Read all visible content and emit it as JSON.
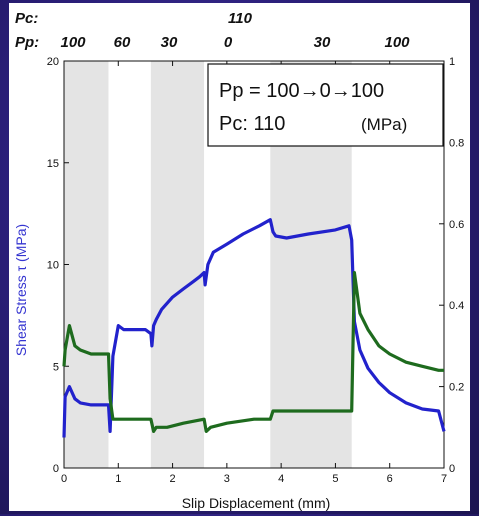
{
  "header": {
    "pc_label": "Pc:",
    "pp_label": "Pp:",
    "pc_value": "110",
    "pp_values": [
      "100",
      "60",
      "30",
      "0",
      "30",
      "100"
    ]
  },
  "legend": {
    "line1": "Pp = 100→0→100",
    "line2": "Pc: 110",
    "unit": "(MPa)"
  },
  "chart_data": {
    "type": "line",
    "xlabel": "Slip Displacement (mm)",
    "ylabel": "Shear Stress τ (MPa)",
    "y2label": "",
    "xlim": [
      0,
      7
    ],
    "ylim": [
      0,
      20
    ],
    "y2lim": [
      0,
      1
    ],
    "x_ticks": [
      "0",
      "1",
      "2",
      "3",
      "4",
      "5",
      "6",
      "7"
    ],
    "y_ticks": [
      "0",
      "5",
      "10",
      "15",
      "20"
    ],
    "y2_ticks": [
      "0",
      "0.2",
      "0.4",
      "0.6",
      "0.8",
      "1"
    ],
    "shaded_x_ranges": [
      [
        0,
        0.82
      ],
      [
        1.6,
        2.58
      ],
      [
        3.8,
        5.3
      ]
    ],
    "colors": {
      "shear_stress": "#2222cc",
      "secondary": "#1e6b1e",
      "shade": "#e4e4e4"
    },
    "series": [
      {
        "axis": "left",
        "x": [
          0,
          0.02,
          0.1,
          0.2,
          0.3,
          0.5,
          0.7,
          0.82,
          0.85,
          0.9,
          1.0,
          1.1,
          1.3,
          1.5,
          1.6,
          1.62,
          1.65,
          1.7,
          1.8,
          2.0,
          2.2,
          2.4,
          2.5,
          2.58,
          2.6,
          2.65,
          2.75,
          3.0,
          3.3,
          3.6,
          3.8,
          3.85,
          3.9,
          4.1,
          4.5,
          5.0,
          5.25,
          5.3,
          5.35,
          5.45,
          5.6,
          5.8,
          6.0,
          6.3,
          6.6,
          6.9,
          7.0
        ],
        "values": [
          1.5,
          3.5,
          4.0,
          3.4,
          3.2,
          3.1,
          3.1,
          3.1,
          1.8,
          5.5,
          7.0,
          6.8,
          6.8,
          6.8,
          6.6,
          6.0,
          7.0,
          7.3,
          7.8,
          8.4,
          8.8,
          9.2,
          9.4,
          9.6,
          9.0,
          10.0,
          10.6,
          11.0,
          11.5,
          11.9,
          12.2,
          11.6,
          11.4,
          11.3,
          11.5,
          11.7,
          11.9,
          11.2,
          7.2,
          5.8,
          4.9,
          4.2,
          3.7,
          3.2,
          2.9,
          2.8,
          1.8
        ]
      },
      {
        "axis": "right",
        "x": [
          0,
          0.02,
          0.1,
          0.2,
          0.3,
          0.5,
          0.7,
          0.82,
          0.85,
          0.9,
          1.0,
          1.2,
          1.4,
          1.6,
          1.65,
          1.7,
          1.9,
          2.2,
          2.58,
          2.62,
          2.7,
          3.0,
          3.5,
          3.8,
          3.85,
          4.0,
          4.5,
          5.0,
          5.3,
          5.35,
          5.45,
          5.6,
          5.8,
          6.0,
          6.3,
          6.6,
          6.9,
          7.0
        ],
        "values": [
          0.25,
          0.29,
          0.35,
          0.3,
          0.29,
          0.28,
          0.28,
          0.28,
          0.17,
          0.12,
          0.12,
          0.12,
          0.12,
          0.12,
          0.09,
          0.1,
          0.1,
          0.11,
          0.12,
          0.09,
          0.1,
          0.11,
          0.12,
          0.12,
          0.14,
          0.14,
          0.14,
          0.14,
          0.14,
          0.48,
          0.38,
          0.34,
          0.3,
          0.28,
          0.26,
          0.25,
          0.24,
          0.24
        ]
      }
    ]
  }
}
